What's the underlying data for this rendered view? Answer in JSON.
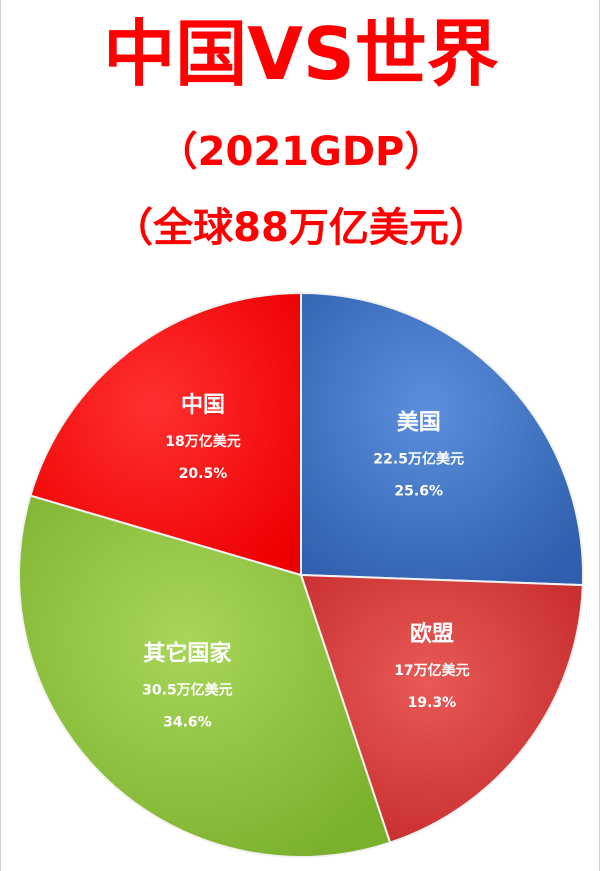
{
  "titles": {
    "main": "中国VS世界",
    "year": "（2021GDP）",
    "total": "（全球88万亿美元）"
  },
  "chart_data": {
    "type": "pie",
    "title": "中国VS世界",
    "subtitle": "（2021GDP）（全球88万亿美元）",
    "unit": "万亿美元",
    "slices": [
      {
        "name": "美国",
        "value": 22.5,
        "value_label": "22.5万亿美元",
        "percent": 25.6,
        "percent_label": "25.6%",
        "color": "#3a6fc4"
      },
      {
        "name": "欧盟",
        "value": 17,
        "value_label": "17万亿美元",
        "percent": 19.3,
        "percent_label": "19.3%",
        "color": "#d63a3a"
      },
      {
        "name": "其它国家",
        "value": 30.5,
        "value_label": "30.5万亿美元",
        "percent": 34.6,
        "percent_label": "34.6%",
        "color": "#8fc23c"
      },
      {
        "name": "中国",
        "value": 18,
        "value_label": "18万亿美元",
        "percent": 20.5,
        "percent_label": "20.5%",
        "color": "#ff1a1a"
      }
    ]
  }
}
